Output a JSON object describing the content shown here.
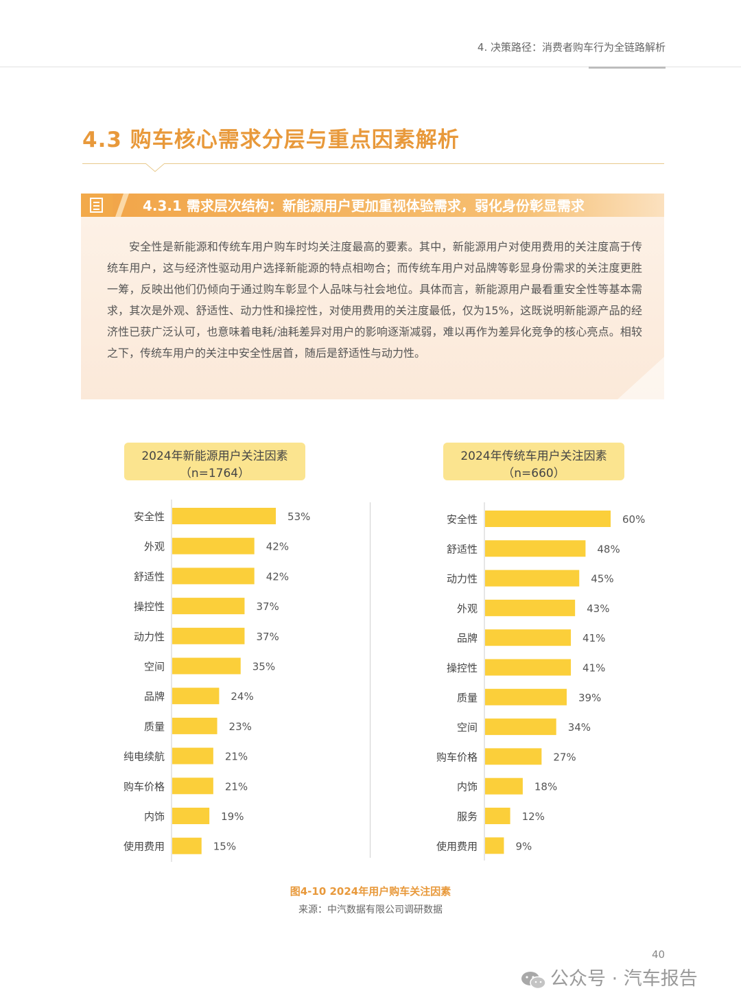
{
  "header": {
    "running_head": "4. 决策路径：消费者购车行为全链路解析"
  },
  "section": {
    "title": "4.3 购车核心需求分层与重点因素解析",
    "subsection": "4.3.1 需求层次结构：新能源用户更加重视体验需求，弱化身份彰显需求"
  },
  "body": {
    "paragraph": "安全性是新能源和传统车用户购车时均关注度最高的要素。其中，新能源用户对使用费用的关注度高于传统车用户，这与经济性驱动用户选择新能源的特点相吻合；而传统车用户对品牌等彰显身份需求的关注度更胜一筹，反映出他们仍倾向于通过购车彰显个人品味与社会地位。具体而言，新能源用户最看重安全性等基本需求，其次是外观、舒适性、动力性和操控性，对使用费用的关注度最低，仅为15%，这既说明新能源产品的经济性已获广泛认可，也意味着电耗/油耗差异对用户的影响逐渐减弱，难以再作为差异化竞争的核心亮点。相较之下，传统车用户的关注中安全性居首，随后是舒适性与动力性。"
  },
  "colors": {
    "bar": "#fbcf3a",
    "accent": "#e8993b",
    "title_box": "#fbe48f"
  },
  "chart_data": [
    {
      "type": "bar",
      "orientation": "horizontal",
      "title": "2024年新能源用户关注因素",
      "subtitle": "（n=1764）",
      "categories": [
        "安全性",
        "外观",
        "舒适性",
        "操控性",
        "动力性",
        "空间",
        "品牌",
        "质量",
        "纯电续航",
        "购车价格",
        "内饰",
        "使用费用"
      ],
      "values": [
        53,
        42,
        42,
        37,
        37,
        35,
        24,
        23,
        21,
        21,
        19,
        15
      ],
      "value_labels": [
        "53%",
        "42%",
        "42%",
        "37%",
        "37%",
        "35%",
        "24%",
        "23%",
        "21%",
        "21%",
        "19%",
        "15%"
      ],
      "unit": "%",
      "xlim": [
        0,
        60
      ]
    },
    {
      "type": "bar",
      "orientation": "horizontal",
      "title": "2024年传统车用户关注因素",
      "subtitle": "（n=660）",
      "categories": [
        "安全性",
        "舒适性",
        "动力性",
        "外观",
        "品牌",
        "操控性",
        "质量",
        "空间",
        "购车价格",
        "内饰",
        "服务",
        "使用费用"
      ],
      "values": [
        60,
        48,
        45,
        43,
        41,
        41,
        39,
        34,
        27,
        18,
        12,
        9
      ],
      "value_labels": [
        "60%",
        "48%",
        "45%",
        "43%",
        "41%",
        "41%",
        "39%",
        "34%",
        "27%",
        "18%",
        "12%",
        "9%"
      ],
      "unit": "%",
      "xlim": [
        0,
        60
      ]
    }
  ],
  "figure": {
    "caption": "图4-10 2024年用户购车关注因素",
    "source": "来源：中汽数据有限公司调研数据"
  },
  "footer": {
    "page_number": "40",
    "watermark": "公众号 · 汽车报告"
  }
}
